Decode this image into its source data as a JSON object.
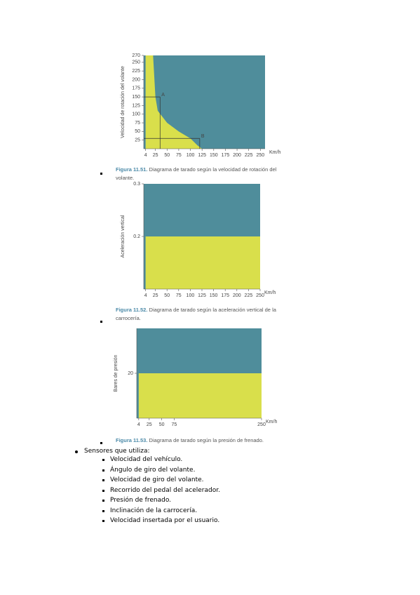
{
  "figures": [
    {
      "type": "area",
      "caption_label": "Figura 11.51.",
      "caption": "Diagrama de tarado según la velocidad de rotación del volante.",
      "y_label": "Velocidad de rotación del volante",
      "x_label": "Km/h",
      "xlim": [
        0,
        260
      ],
      "ylim": [
        0,
        270
      ],
      "xticks": [
        4,
        25,
        50,
        75,
        100,
        125,
        150,
        175,
        200,
        225,
        250
      ],
      "yticks": [
        25,
        50,
        75,
        100,
        125,
        150,
        175,
        200,
        225,
        250,
        270
      ],
      "x": [
        4,
        20,
        25,
        30,
        50,
        75,
        100,
        115,
        125
      ],
      "values": [
        270,
        270,
        150,
        110,
        75,
        50,
        30,
        10,
        0
      ],
      "color": "#d9df4b",
      "background": "#4f8d9b",
      "annotations": [
        {
          "label": "A",
          "x": 35,
          "y": 150
        },
        {
          "label": "B",
          "x": 120,
          "y": 30
        }
      ]
    },
    {
      "type": "area",
      "caption_label": "Figura 11.52.",
      "caption": "Diagrama de tarado según la aceleración vertical de la carrocería.",
      "y_label": "Aceleración vertical",
      "x_label": "Km/h",
      "xlim": [
        0,
        250
      ],
      "ylim": [
        0.1,
        0.3
      ],
      "xticks": [
        4,
        25,
        50,
        75,
        100,
        125,
        150,
        175,
        200,
        225,
        250
      ],
      "yticks": [
        0.2,
        0.3
      ],
      "x": [
        4,
        250
      ],
      "values": [
        0.2,
        0.2
      ],
      "color": "#d9df4b",
      "background": "#4f8d9b"
    },
    {
      "type": "area",
      "caption_label": "Figura 11.53.",
      "caption": "Diagrama de tarado según la presión de frenado.",
      "y_label": "Bares de presión",
      "x_label": "Km/h",
      "xlim": [
        0,
        250
      ],
      "ylim": [
        0,
        40
      ],
      "xticks": [
        4,
        25,
        50,
        75,
        250
      ],
      "yticks": [
        20
      ],
      "x": [
        4,
        250
      ],
      "values": [
        20,
        20
      ],
      "color": "#d9df4b",
      "background": "#4f8d9b"
    }
  ],
  "list": {
    "title": "Sensores que utiliza:",
    "items": [
      "Velocidad del vehículo.",
      "Ángulo de giro del volante.",
      "Velocidad de giro del volante.",
      "Recorrido del pedal del acelerador.",
      "Presión de frenado.",
      "Inclinación de la carrocería.",
      "Velocidad insertada por el usuario."
    ]
  }
}
